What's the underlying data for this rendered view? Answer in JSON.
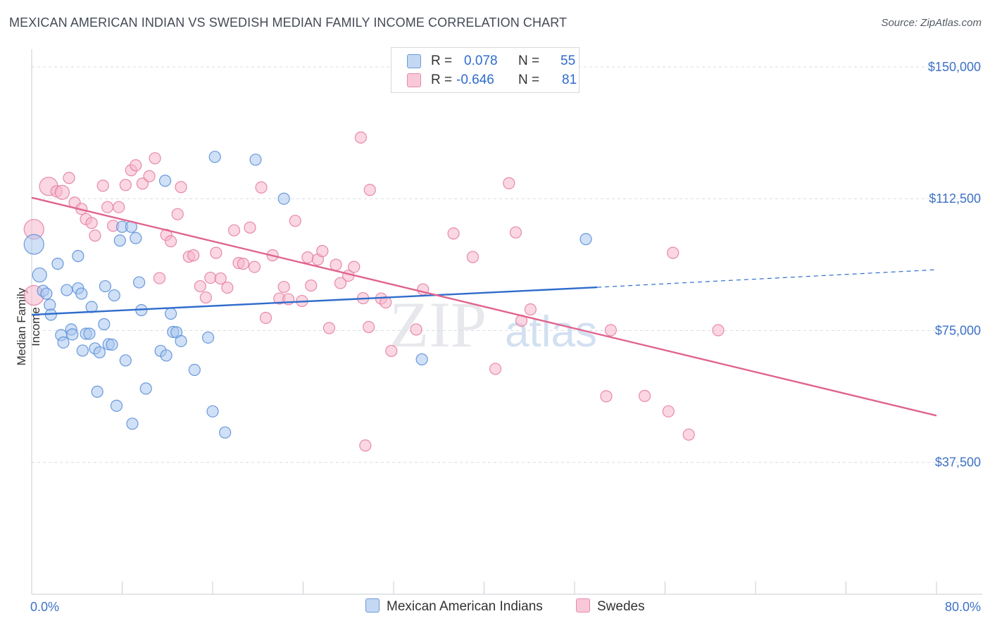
{
  "header": {
    "title": "MEXICAN AMERICAN INDIAN VS SWEDISH MEDIAN FAMILY INCOME CORRELATION CHART",
    "source": "Source: ZipAtlas.com"
  },
  "watermark": {
    "part1": "ZIP",
    "part2": "atlas"
  },
  "legend": {
    "rows": [
      {
        "r_label": "R =",
        "r_value": "0.078",
        "n_label": "N =",
        "n_value": "55"
      },
      {
        "r_label": "R =",
        "r_value": "-0.646",
        "n_label": "N =",
        "n_value": "81"
      }
    ]
  },
  "bottom_legend": {
    "series1": "Mexican American Indians",
    "series2": "Swedes"
  },
  "x_axis": {
    "min_label": "0.0%",
    "max_label": "80.0%"
  },
  "colors": {
    "blue_fill": "#a9c7ef",
    "blue_stroke": "#5b8fd8",
    "blue_line": "#2f6ccc",
    "pink_fill": "#f6b7cc",
    "pink_stroke": "#e57ea3",
    "pink_line": "#e0648f",
    "label_blue": "#3e72c6",
    "grid": "#d8dce3"
  },
  "chart_data": {
    "type": "scatter",
    "title": "MEXICAN AMERICAN INDIAN VS SWEDISH MEDIAN FAMILY INCOME CORRELATION CHART",
    "xlabel": "",
    "ylabel": "Median Family Income",
    "xlim": [
      0,
      80
    ],
    "ylim": [
      0,
      155000
    ],
    "y_ticks": [
      {
        "value": 37500,
        "label": "$37,500"
      },
      {
        "value": 75000,
        "label": "$75,000"
      },
      {
        "value": 112500,
        "label": "$112,500"
      },
      {
        "value": 150000,
        "label": "$150,000"
      }
    ],
    "grid": true,
    "legend_position": "top-center",
    "series": [
      {
        "name": "Mexican American Indians",
        "r": 0.078,
        "n": 55,
        "trend": {
          "x0": 0,
          "y0": 79500,
          "x1": 50,
          "y1": 87300,
          "dash_to_x": 80,
          "dash_to_y": 92300
        },
        "points": [
          [
            0.2,
            99500,
            14
          ],
          [
            0.7,
            90800,
            10
          ],
          [
            1.0,
            86300,
            8
          ],
          [
            1.3,
            85500,
            8
          ],
          [
            1.6,
            82300,
            8
          ],
          [
            1.7,
            79500,
            8
          ],
          [
            2.3,
            94000,
            8
          ],
          [
            2.6,
            73700,
            8
          ],
          [
            2.8,
            71600,
            8
          ],
          [
            3.1,
            86500,
            8
          ],
          [
            3.5,
            75300,
            8
          ],
          [
            3.6,
            73900,
            8
          ],
          [
            4.1,
            87000,
            8
          ],
          [
            4.1,
            96200,
            8
          ],
          [
            4.4,
            85500,
            8
          ],
          [
            4.5,
            69300,
            8
          ],
          [
            4.8,
            74100,
            8
          ],
          [
            5.1,
            74100,
            8
          ],
          [
            5.3,
            81700,
            8
          ],
          [
            5.6,
            69900,
            8
          ],
          [
            5.8,
            57600,
            8
          ],
          [
            6.0,
            68800,
            8
          ],
          [
            6.4,
            76800,
            8
          ],
          [
            6.5,
            87600,
            8
          ],
          [
            6.8,
            71100,
            8
          ],
          [
            7.1,
            71000,
            8
          ],
          [
            7.3,
            85000,
            8
          ],
          [
            7.5,
            53600,
            8
          ],
          [
            7.8,
            100600,
            8
          ],
          [
            8.0,
            104500,
            8
          ],
          [
            8.3,
            66500,
            8
          ],
          [
            8.8,
            104500,
            8
          ],
          [
            8.9,
            48500,
            8
          ],
          [
            9.2,
            101300,
            8
          ],
          [
            9.5,
            88700,
            8
          ],
          [
            9.7,
            80800,
            8
          ],
          [
            10.1,
            58500,
            8
          ],
          [
            11.4,
            69200,
            8
          ],
          [
            11.8,
            117600,
            8
          ],
          [
            11.9,
            67900,
            8
          ],
          [
            12.3,
            79800,
            8
          ],
          [
            12.5,
            74600,
            8
          ],
          [
            12.8,
            74500,
            8
          ],
          [
            13.2,
            72000,
            8
          ],
          [
            14.4,
            63800,
            8
          ],
          [
            15.6,
            73000,
            8
          ],
          [
            16.0,
            52000,
            8
          ],
          [
            16.2,
            124400,
            8
          ],
          [
            17.1,
            46000,
            8
          ],
          [
            19.8,
            123600,
            8
          ],
          [
            22.3,
            112500,
            8
          ],
          [
            34.5,
            66800,
            8
          ],
          [
            49.0,
            101000,
            8
          ]
        ]
      },
      {
        "name": "Swedes",
        "r": -0.646,
        "n": 81,
        "trend": {
          "x0": 0,
          "y0": 112800,
          "x1": 80,
          "y1": 50800
        },
        "points": [
          [
            0.2,
            103800,
            14
          ],
          [
            0.2,
            85000,
            14
          ],
          [
            1.5,
            116000,
            13
          ],
          [
            2.2,
            114600,
            8
          ],
          [
            2.7,
            114300,
            10
          ],
          [
            3.3,
            118400,
            8
          ],
          [
            3.8,
            111400,
            8
          ],
          [
            4.4,
            109600,
            8
          ],
          [
            4.8,
            106700,
            8
          ],
          [
            5.3,
            105600,
            8
          ],
          [
            5.6,
            102000,
            8
          ],
          [
            6.3,
            116200,
            8
          ],
          [
            6.7,
            110100,
            8
          ],
          [
            7.2,
            104800,
            8
          ],
          [
            7.7,
            110100,
            8
          ],
          [
            8.3,
            116400,
            8
          ],
          [
            8.8,
            120600,
            8
          ],
          [
            9.2,
            122000,
            8
          ],
          [
            9.8,
            116800,
            8
          ],
          [
            10.4,
            118900,
            8
          ],
          [
            10.9,
            124000,
            8
          ],
          [
            11.3,
            89900,
            8
          ],
          [
            11.9,
            102200,
            8
          ],
          [
            12.3,
            100400,
            8
          ],
          [
            12.9,
            108100,
            8
          ],
          [
            13.2,
            115800,
            8
          ],
          [
            13.9,
            96000,
            8
          ],
          [
            14.3,
            96400,
            8
          ],
          [
            14.9,
            87600,
            8
          ],
          [
            15.4,
            84400,
            8
          ],
          [
            15.8,
            90000,
            8
          ],
          [
            16.3,
            97100,
            8
          ],
          [
            16.7,
            89800,
            8
          ],
          [
            17.3,
            87200,
            8
          ],
          [
            17.9,
            103500,
            8
          ],
          [
            18.3,
            94200,
            8
          ],
          [
            18.7,
            94000,
            8
          ],
          [
            19.3,
            104300,
            8
          ],
          [
            19.7,
            93100,
            8
          ],
          [
            20.3,
            115700,
            8
          ],
          [
            20.7,
            78600,
            8
          ],
          [
            21.3,
            96400,
            8
          ],
          [
            21.9,
            84100,
            8
          ],
          [
            22.3,
            87400,
            8
          ],
          [
            22.7,
            83900,
            8
          ],
          [
            23.3,
            106200,
            8
          ],
          [
            23.9,
            83400,
            8
          ],
          [
            24.4,
            95800,
            8
          ],
          [
            24.7,
            87800,
            8
          ],
          [
            25.3,
            95200,
            8
          ],
          [
            25.7,
            97600,
            8
          ],
          [
            26.3,
            75700,
            8
          ],
          [
            26.9,
            93700,
            8
          ],
          [
            27.3,
            88500,
            8
          ],
          [
            28.0,
            90600,
            8
          ],
          [
            28.5,
            93100,
            8
          ],
          [
            29.1,
            129900,
            8
          ],
          [
            29.3,
            84200,
            8
          ],
          [
            29.5,
            42300,
            8
          ],
          [
            29.8,
            76000,
            8
          ],
          [
            29.9,
            115000,
            8
          ],
          [
            30.9,
            84100,
            8
          ],
          [
            31.3,
            83000,
            8
          ],
          [
            31.8,
            69200,
            8
          ],
          [
            34.0,
            75300,
            8
          ],
          [
            34.6,
            86700,
            8
          ],
          [
            37.3,
            102600,
            8
          ],
          [
            39.0,
            95900,
            8
          ],
          [
            41.0,
            64100,
            8
          ],
          [
            42.2,
            116900,
            8
          ],
          [
            42.8,
            102900,
            8
          ],
          [
            43.3,
            77800,
            8
          ],
          [
            44.1,
            81000,
            8
          ],
          [
            50.8,
            56300,
            8
          ],
          [
            51.2,
            75100,
            8
          ],
          [
            54.2,
            56400,
            8
          ],
          [
            56.3,
            52000,
            8
          ],
          [
            56.7,
            97100,
            8
          ],
          [
            58.1,
            45400,
            8
          ],
          [
            60.7,
            75100,
            8
          ]
        ]
      }
    ]
  }
}
